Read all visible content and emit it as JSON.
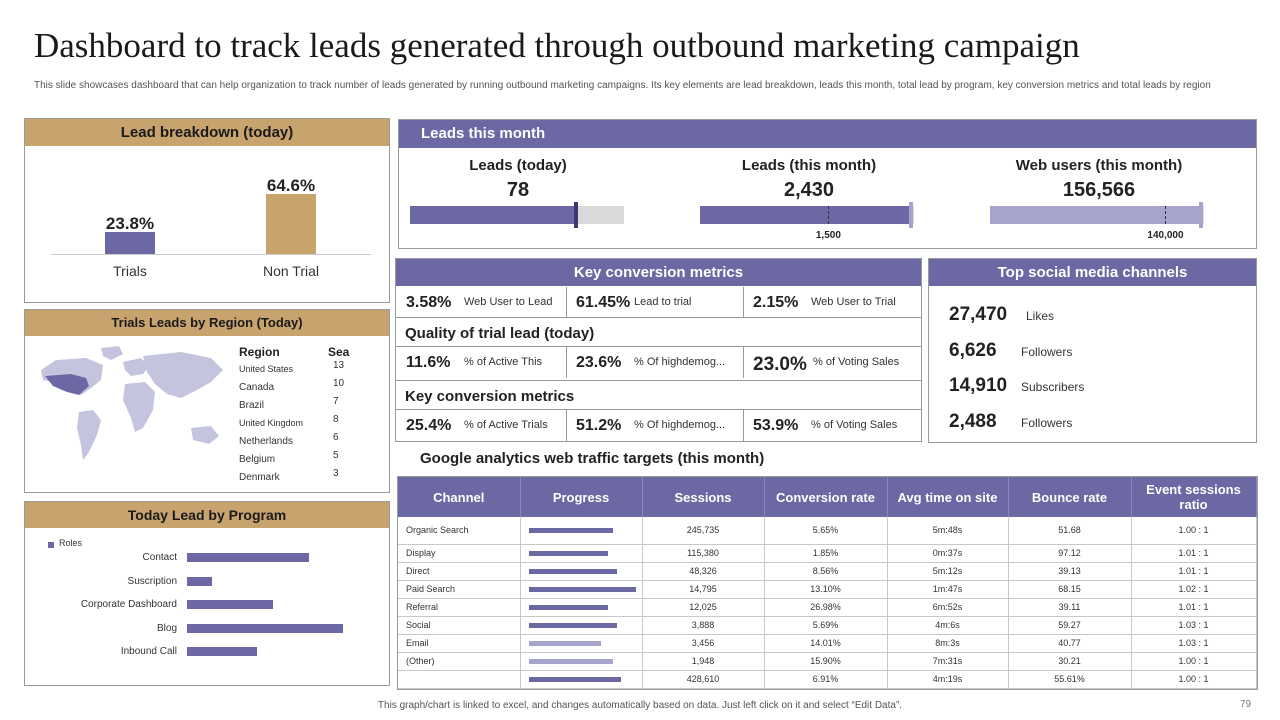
{
  "title": "Dashboard to track leads generated through outbound marketing campaign",
  "subtitle": "This slide showcases dashboard that can help organization to track number of leads generated by running outbound marketing campaigns. Its key elements are lead breakdown, leads this month, total lead by program, key conversion metrics and total leads by region",
  "lead_breakdown": {
    "header": "Lead breakdown (today)",
    "bars": [
      {
        "label": "Trials",
        "value_label": "23.8%",
        "value": 23.8
      },
      {
        "label": "Non Trial",
        "value_label": "64.6%",
        "value": 64.6
      }
    ]
  },
  "leads_month": {
    "header": "Leads this month",
    "items": [
      {
        "label": "Leads (today)",
        "value": "78",
        "fill": 0.77,
        "target": 0.77,
        "target_label": ""
      },
      {
        "label": "Leads (this month)",
        "value": "2,430",
        "fill": 0.98,
        "target": 0.6,
        "target_label": "1,500"
      },
      {
        "label": "Web users (this month)",
        "value": "156,566",
        "fill": 0.98,
        "target": 0.82,
        "target_label": "140,000"
      }
    ]
  },
  "key_metrics": {
    "header": "Key conversion metrics",
    "rows": [
      [
        {
          "v": "3.58%",
          "l": "Web User to Lead"
        },
        {
          "v": "61.45%",
          "l": "Lead to trial"
        },
        {
          "v": "2.15%",
          "l": "Web User to Trial"
        }
      ],
      [
        {
          "v": "11.6%",
          "l": "% of Active This"
        },
        {
          "v": "23.6%",
          "l": "% Of highdemog..."
        },
        {
          "v": "23.0%",
          "l": "% of Voting Sales"
        }
      ],
      [
        {
          "v": "25.4%",
          "l": "% of Active Trials"
        },
        {
          "v": "51.2%",
          "l": "% Of highdemog..."
        },
        {
          "v": "53.9%",
          "l": "% of Voting Sales"
        }
      ]
    ],
    "section2": "Quality of trial lead (today)",
    "section3": "Key conversion metrics"
  },
  "social": {
    "header": "Top social media channels",
    "items": [
      {
        "value": "27,470",
        "label": "Likes"
      },
      {
        "value": "6,626",
        "label": "Followers"
      },
      {
        "value": "14,910",
        "label": "Subscribers"
      },
      {
        "value": "2,488",
        "label": "Followers"
      }
    ]
  },
  "region": {
    "header": "Trials Leads by Region (Today)",
    "col1": "Region",
    "col2": "Sea",
    "rows": [
      {
        "name": "United States",
        "value": "13"
      },
      {
        "name": "Canada",
        "value": "10"
      },
      {
        "name": "Brazil",
        "value": "7"
      },
      {
        "name": "United Kingdom",
        "value": "8"
      },
      {
        "name": "Netherlands",
        "value": "6"
      },
      {
        "name": "Belgium",
        "value": "5"
      },
      {
        "name": "Denmark",
        "value": "3"
      }
    ]
  },
  "program": {
    "header": "Today Lead by Program",
    "legend": "Roles",
    "items": [
      {
        "label": "Contact",
        "value": 122
      },
      {
        "label": "Suscription",
        "value": 25
      },
      {
        "label": "Corporate Dashboard",
        "value": 86
      },
      {
        "label": "Blog",
        "value": 156
      },
      {
        "label": "Inbound Call",
        "value": 70
      }
    ]
  },
  "ga": {
    "title": "Google analytics web traffic targets (this month)",
    "headers": [
      "Channel",
      "Progress",
      "Sessions",
      "Conversion rate",
      "Avg time on site",
      "Bounce rate",
      "Event sessions ratio"
    ],
    "rows": [
      {
        "channel": "Organic Search",
        "progress": 0.79,
        "sessions": "245,735",
        "conv": "5.65%",
        "avg": "5m:48s",
        "bounce": "51.68",
        "ratio": "1.00 : 1",
        "light": false
      },
      {
        "channel": "Display",
        "progress": 0.74,
        "sessions": "115,380",
        "conv": "1.85%",
        "avg": "0m:37s",
        "bounce": "97.12",
        "ratio": "1.01 : 1",
        "light": false
      },
      {
        "channel": "Direct",
        "progress": 0.83,
        "sessions": "48,326",
        "conv": "8.56%",
        "avg": "5m:12s",
        "bounce": "39.13",
        "ratio": "1.01 : 1",
        "light": false
      },
      {
        "channel": "Paid Search",
        "progress": 1.0,
        "sessions": "14,795",
        "conv": "13.10%",
        "avg": "1m:47s",
        "bounce": "68.15",
        "ratio": "1.02 : 1",
        "light": false
      },
      {
        "channel": "Referral",
        "progress": 0.74,
        "sessions": "12,025",
        "conv": "26.98%",
        "avg": "6m:52s",
        "bounce": "39.11",
        "ratio": "1.01 : 1",
        "light": false
      },
      {
        "channel": "Social",
        "progress": 0.83,
        "sessions": "3,888",
        "conv": "5.69%",
        "avg": "4m:6s",
        "bounce": "59.27",
        "ratio": "1.03 : 1",
        "light": false
      },
      {
        "channel": "Email",
        "progress": 0.68,
        "sessions": "3,456",
        "conv": "14.01%",
        "avg": "8m:3s",
        "bounce": "40.77",
        "ratio": "1.03 : 1",
        "light": true
      },
      {
        "channel": "(Other)",
        "progress": 0.79,
        "sessions": "1,948",
        "conv": "15.90%",
        "avg": "7m:31s",
        "bounce": "30.21",
        "ratio": "1.00 : 1",
        "light": true
      },
      {
        "channel": "",
        "progress": 0.86,
        "sessions": "428,610",
        "conv": "6.91%",
        "avg": "4m:19s",
        "bounce": "55.61%",
        "ratio": "1.00 : 1",
        "light": false
      }
    ]
  },
  "footer": "This graph/chart is linked to excel, and changes automatically based on data. Just left click on it and select “Edit Data”.",
  "page_number": "79",
  "colors": {
    "purple": "#6b68a4",
    "light_purple": "#a6a3cc",
    "tan": "#c9a36e",
    "grey": "#d9d9d9"
  }
}
